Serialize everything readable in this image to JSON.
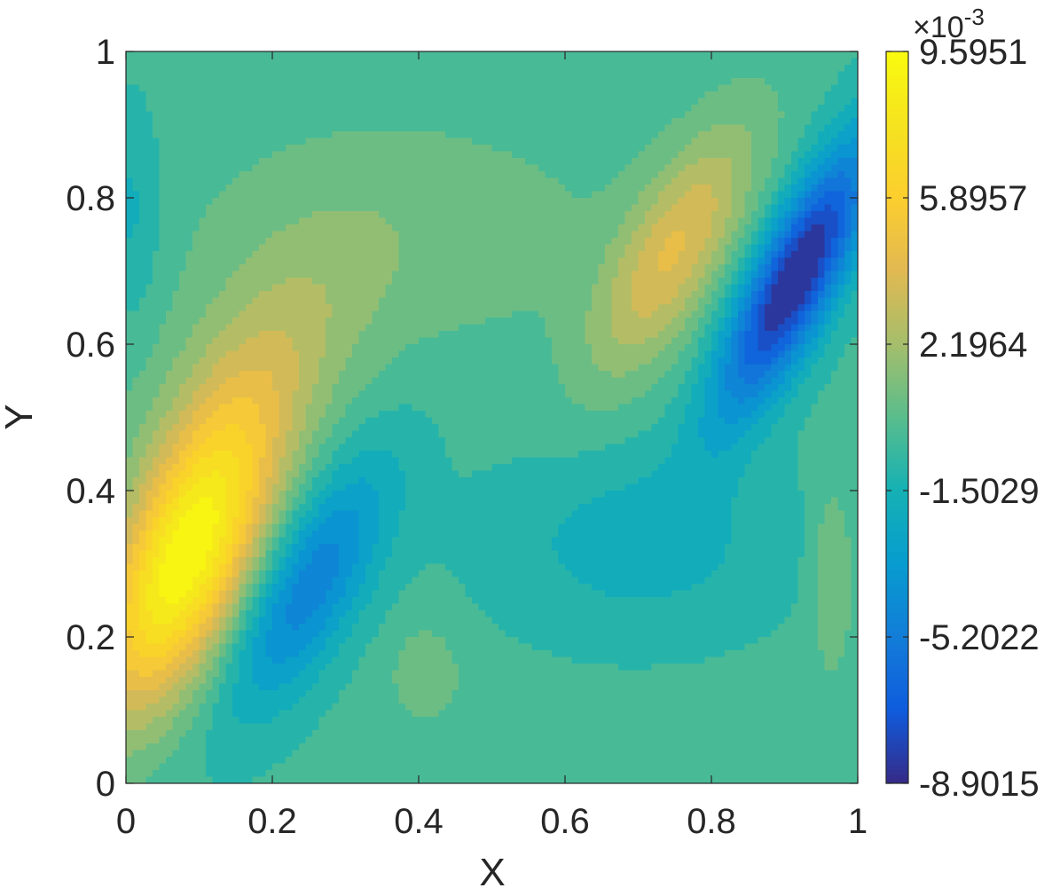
{
  "chart_data": {
    "type": "heatmap",
    "subtype": "filled-contour",
    "title": "",
    "xlabel": "X",
    "ylabel": "Y",
    "xlim": [
      0,
      1
    ],
    "ylim": [
      0,
      1
    ],
    "x_ticks": [
      0,
      0.2,
      0.4,
      0.6,
      0.8,
      1
    ],
    "x_tick_labels": [
      "0",
      "0.2",
      "0.4",
      "0.6",
      "0.8",
      "1"
    ],
    "y_ticks": [
      0,
      0.2,
      0.4,
      0.6,
      0.8,
      1
    ],
    "y_tick_labels": [
      "0",
      "0.2",
      "0.4",
      "0.6",
      "0.8",
      "1"
    ],
    "colormap": "parula",
    "colorbar": {
      "location": "right",
      "exponent_label": "×10",
      "exponent_power": "-3",
      "range": [
        -8.9015,
        9.5951
      ],
      "ticks": [
        -8.9015,
        -5.2022,
        -1.5029,
        2.1964,
        5.8957,
        9.5951
      ],
      "tick_labels": [
        "-8.9015",
        "-5.2022",
        "-1.5029",
        "2.1964",
        "5.8957",
        "9.5951"
      ]
    },
    "background_value": -0.3,
    "features": [
      {
        "kind": "max",
        "x": 0.08,
        "y": 0.3,
        "value": 9.5,
        "sx": 0.065,
        "sy": 0.14,
        "tilt": 0.35
      },
      {
        "kind": "ridge",
        "x": 0.17,
        "y": 0.55,
        "value": 2.6,
        "sx": 0.09,
        "sy": 0.13,
        "tilt": 0.45
      },
      {
        "kind": "positive",
        "x": 0.38,
        "y": 0.75,
        "value": 1.2,
        "sx": 0.22,
        "sy": 0.12,
        "tilt": 0.0
      },
      {
        "kind": "min",
        "x": 0.006,
        "y": 0.78,
        "value": -1.6,
        "sx": 0.03,
        "sy": 0.1,
        "tilt": 0.0
      },
      {
        "kind": "min",
        "x": 0.25,
        "y": 0.27,
        "value": -4.7,
        "sx": 0.055,
        "sy": 0.12,
        "tilt": 0.45
      },
      {
        "kind": "positive",
        "x": 0.41,
        "y": 0.15,
        "value": 1.4,
        "sx": 0.035,
        "sy": 0.05,
        "tilt": 0.0
      },
      {
        "kind": "max",
        "x": 0.75,
        "y": 0.73,
        "value": 4.2,
        "sx": 0.055,
        "sy": 0.12,
        "tilt": 0.45
      },
      {
        "kind": "min",
        "x": 0.915,
        "y": 0.69,
        "value": -9.0,
        "sx": 0.045,
        "sy": 0.13,
        "tilt": 0.45
      },
      {
        "kind": "min",
        "x": 0.7,
        "y": 0.33,
        "value": -1.7,
        "sx": 0.14,
        "sy": 0.09,
        "tilt": 0.0
      },
      {
        "kind": "positive",
        "x": 0.965,
        "y": 0.28,
        "value": 1.8,
        "sx": 0.02,
        "sy": 0.09,
        "tilt": 0.0
      }
    ]
  }
}
